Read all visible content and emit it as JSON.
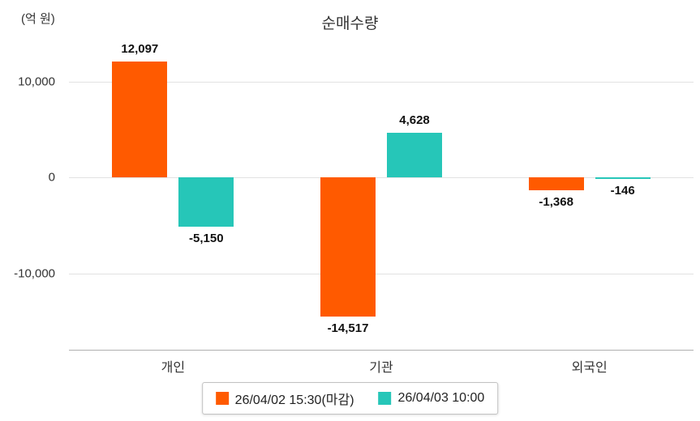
{
  "title": "순매수량",
  "axis_unit_label": "(억 원)",
  "chart_data": {
    "type": "bar",
    "categories": [
      "개인",
      "기관",
      "외국인"
    ],
    "series": [
      {
        "name": "26/04/02 15:30(마감)",
        "color": "#FF5A00",
        "values": [
          12097,
          -14517,
          -1368
        ],
        "labels": [
          "12,097",
          "-14,517",
          "-1,368"
        ]
      },
      {
        "name": "26/04/03 10:00",
        "color": "#26C6B8",
        "values": [
          -5150,
          4628,
          -146
        ],
        "labels": [
          "-5,150",
          "4,628",
          "-146"
        ]
      }
    ],
    "yticks": [
      10000,
      0,
      -10000
    ],
    "ytick_labels": [
      "10,000",
      "0",
      "-10,000"
    ],
    "ylim": [
      -17950,
      13850
    ],
    "grid": "horizontal",
    "legend_position": "bottom"
  }
}
